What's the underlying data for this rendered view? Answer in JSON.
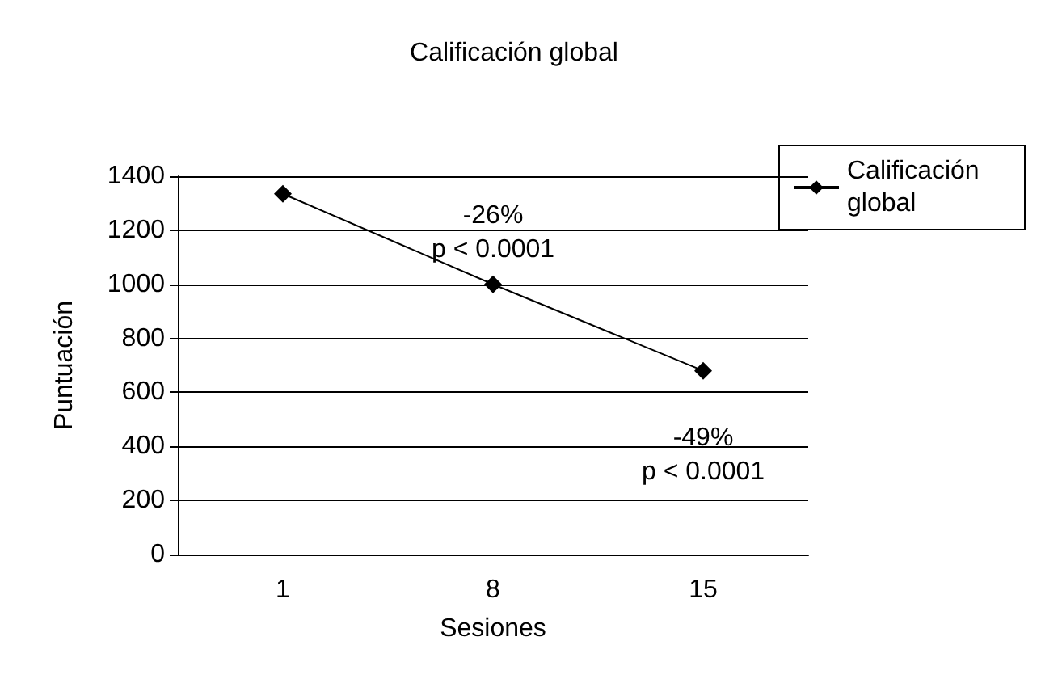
{
  "chart_data": {
    "type": "line",
    "title": "Calificación global",
    "xlabel": "Sesiones",
    "ylabel": "Puntuación",
    "categories": [
      "1",
      "8",
      "15"
    ],
    "series": [
      {
        "name": "Calificación global",
        "color": "#000000",
        "values": [
          1335,
          1000,
          680
        ]
      }
    ],
    "ylim": [
      0,
      1400
    ],
    "yticks": [
      0,
      200,
      400,
      600,
      800,
      1000,
      1200,
      1400
    ],
    "grid": "y",
    "legend": "top right",
    "marker": "diamond",
    "line_style": "solid",
    "annotations": [
      "-26%\np < 0.0001",
      "-49%\np < 0.0001"
    ]
  }
}
